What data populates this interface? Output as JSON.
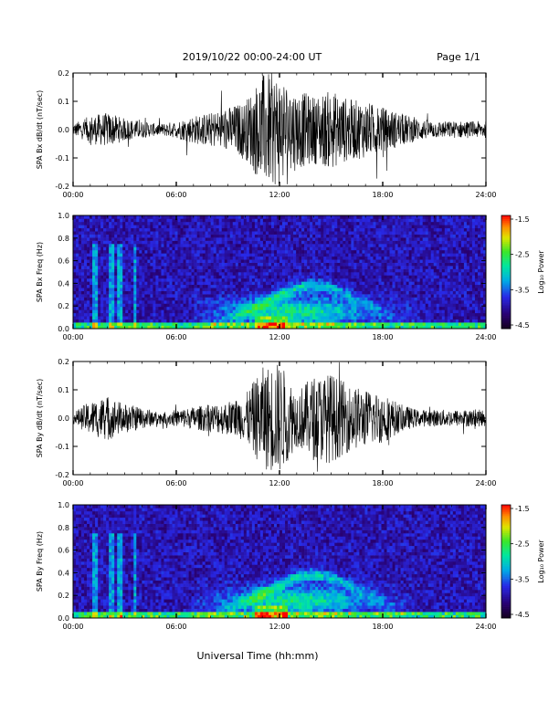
{
  "header": {
    "title": "2019/10/22  00:00-24:00 UT",
    "page": "Page 1/1"
  },
  "footer": {
    "xlabel": "Universal Time (hh:mm)"
  },
  "colorbar": {
    "label": "Log₁₀ Power",
    "ticks": [
      "-1.5",
      "-2.5",
      "-3.5",
      "-4.5"
    ],
    "range": [
      -4.5,
      -1.5
    ]
  },
  "chart_data": [
    {
      "type": "line",
      "ylabel": "SPA Bx dB/dt (nT/sec)",
      "xlim": [
        0,
        24
      ],
      "ylim": [
        -0.2,
        0.2
      ],
      "yticks": [
        "0.2",
        "0.1",
        "0.0",
        "-0.1",
        "-0.2"
      ],
      "xticks": [
        "00:00",
        "06:00",
        "12:00",
        "18:00",
        "24:00"
      ],
      "series": [
        {
          "x": [
            0,
            1,
            2,
            3,
            4,
            5,
            6,
            7,
            8,
            9,
            10,
            11,
            12,
            13,
            14,
            15,
            16,
            17,
            18,
            19,
            20,
            21,
            22,
            23,
            24
          ],
          "amplitude": [
            0.02,
            0.05,
            0.06,
            0.04,
            0.03,
            0.02,
            0.03,
            0.05,
            0.06,
            0.08,
            0.1,
            0.2,
            0.2,
            0.14,
            0.12,
            0.14,
            0.11,
            0.1,
            0.08,
            0.06,
            0.04,
            0.03,
            0.03,
            0.03,
            0.03
          ]
        }
      ]
    },
    {
      "type": "heatmap",
      "ylabel": "SPA Bx Freq (Hz)",
      "xlim": [
        0,
        24
      ],
      "ylim": [
        0,
        1.0
      ],
      "yticks": [
        "1.0",
        "0.8",
        "0.6",
        "0.4",
        "0.2",
        "0.0"
      ],
      "xticks": [
        "00:00",
        "06:00",
        "12:00",
        "18:00",
        "24:00"
      ]
    },
    {
      "type": "line",
      "ylabel": "SPA By dB/dt (nT/sec)",
      "xlim": [
        0,
        24
      ],
      "ylim": [
        -0.2,
        0.2
      ],
      "yticks": [
        "0.2",
        "0.1",
        "0.0",
        "-0.1",
        "-0.2"
      ],
      "xticks": [
        "00:00",
        "06:00",
        "12:00",
        "18:00",
        "24:00"
      ],
      "series": [
        {
          "x": [
            0,
            1,
            2,
            3,
            4,
            5,
            6,
            7,
            8,
            9,
            10,
            11,
            12,
            13,
            14,
            15,
            16,
            17,
            18,
            19,
            20,
            21,
            22,
            23,
            24
          ],
          "amplitude": [
            0.02,
            0.06,
            0.08,
            0.05,
            0.04,
            0.02,
            0.03,
            0.04,
            0.05,
            0.06,
            0.08,
            0.18,
            0.2,
            0.1,
            0.15,
            0.16,
            0.12,
            0.1,
            0.09,
            0.05,
            0.03,
            0.03,
            0.03,
            0.03,
            0.03
          ]
        }
      ]
    },
    {
      "type": "heatmap",
      "ylabel": "SPA By Freq (Hz)",
      "xlim": [
        0,
        24
      ],
      "ylim": [
        0,
        1.0
      ],
      "yticks": [
        "1.0",
        "0.8",
        "0.6",
        "0.4",
        "0.2",
        "0.0"
      ],
      "xticks": [
        "00:00",
        "06:00",
        "12:00",
        "18:00",
        "24:00"
      ]
    }
  ]
}
